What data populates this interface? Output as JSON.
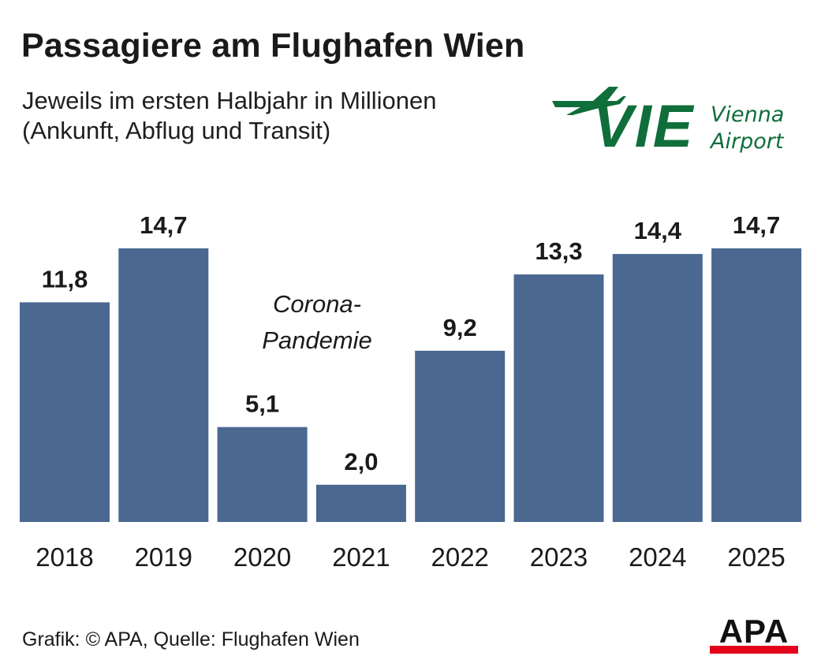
{
  "header": {
    "title": "Passagiere am Flughafen Wien",
    "subtitle_line1": "Jeweils im ersten Halbjahr in Millionen",
    "subtitle_line2": "(Ankunft, Abflug und Transit)"
  },
  "logo": {
    "code": "VIE",
    "name_line1": "Vienna",
    "name_line2": "Airport",
    "icon": "airplane-icon",
    "color": "#0f6e3a"
  },
  "chart_data": {
    "type": "bar",
    "categories": [
      "2018",
      "2019",
      "2020",
      "2021",
      "2022",
      "2023",
      "2024",
      "2025"
    ],
    "values": [
      11.8,
      14.7,
      5.1,
      2.0,
      9.2,
      13.3,
      14.4,
      14.7
    ],
    "value_labels": [
      "11,8",
      "14,7",
      "5,1",
      "2,0",
      "9,2",
      "13,3",
      "14,4",
      "14,7"
    ],
    "title": "Passagiere am Flughafen Wien",
    "xlabel": "",
    "ylabel": "",
    "ylim": [
      0,
      14.7
    ],
    "grid": false,
    "bar_color": "#4a6890",
    "annotation": {
      "line1": "Corona-",
      "line2": "Pandemie"
    }
  },
  "footer": {
    "credit": "Grafik: © APA, Quelle: Flughafen Wien"
  },
  "apa_logo": {
    "text": "APA",
    "accent_color": "#e2001a"
  }
}
